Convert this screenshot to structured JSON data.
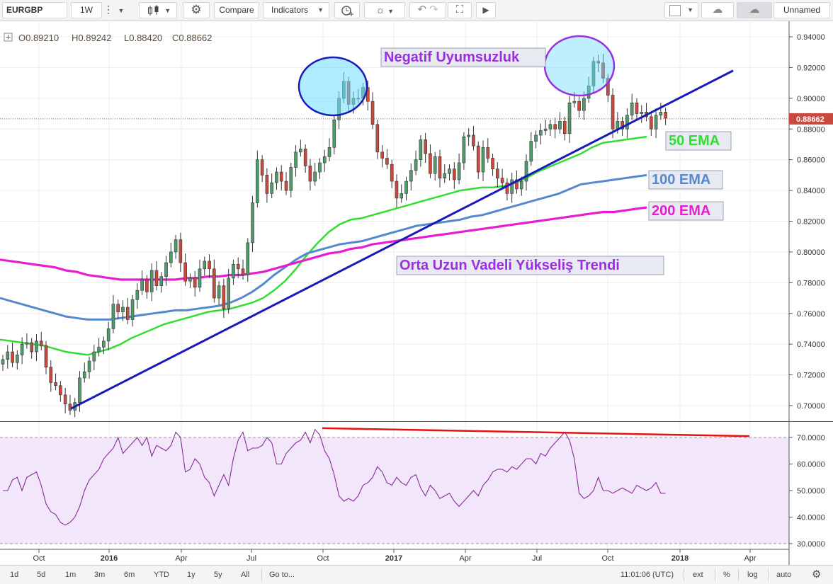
{
  "toolbar": {
    "symbol": "EURGBP",
    "interval": "1W",
    "compare_label": "Compare",
    "indicators_label": "Indicators",
    "layout_name": "Unnamed"
  },
  "legend": {
    "open": "O0.89210",
    "high": "H0.89242",
    "low": "L0.88420",
    "close": "C0.88662"
  },
  "bottom": {
    "ranges": [
      "1d",
      "5d",
      "1m",
      "3m",
      "6m",
      "YTD",
      "1y",
      "5y",
      "All"
    ],
    "goto_label": "Go to...",
    "time": "11:01:06 (UTC)",
    "ext_label": "ext",
    "percent_label": "%",
    "log_label": "log",
    "auto_label": "auto"
  },
  "colors": {
    "up": "#4f9b6c",
    "down": "#c84a3f",
    "ema50": "#33dd33",
    "ema100": "#5588cc",
    "ema200": "#e81cd0",
    "trend": "#1a1ab8",
    "rsi": "#8a2a9a",
    "rsi_band": "#f2e6fb",
    "divergence": "#e81010"
  },
  "chart_data": [
    {
      "type": "candlestick",
      "symbol": "EURGBP",
      "interval": "1W",
      "ylim": [
        0.69,
        0.945
      ],
      "y_ticks": [
        "0.70000",
        "0.72000",
        "0.74000",
        "0.76000",
        "0.78000",
        "0.80000",
        "0.82000",
        "0.84000",
        "0.86000",
        "0.88000",
        "0.90000",
        "0.92000",
        "0.94000"
      ],
      "x_ticks": [
        "Oct",
        "2016",
        "Apr",
        "Jul",
        "Oct",
        "2017",
        "Apr",
        "Jul",
        "Oct",
        "2018",
        "Apr"
      ],
      "last_price": "0.88662",
      "closes": [
        0.73,
        0.735,
        0.728,
        0.733,
        0.74,
        0.741,
        0.735,
        0.742,
        0.739,
        0.725,
        0.715,
        0.713,
        0.707,
        0.701,
        0.697,
        0.702,
        0.718,
        0.722,
        0.729,
        0.735,
        0.738,
        0.742,
        0.75,
        0.766,
        0.761,
        0.764,
        0.756,
        0.769,
        0.775,
        0.782,
        0.774,
        0.788,
        0.778,
        0.784,
        0.793,
        0.8,
        0.808,
        0.793,
        0.781,
        0.783,
        0.777,
        0.789,
        0.794,
        0.789,
        0.77,
        0.778,
        0.763,
        0.783,
        0.792,
        0.789,
        0.785,
        0.806,
        0.832,
        0.86,
        0.85,
        0.838,
        0.845,
        0.852,
        0.846,
        0.84,
        0.855,
        0.865,
        0.867,
        0.856,
        0.846,
        0.852,
        0.858,
        0.862,
        0.868,
        0.886,
        0.9,
        0.911,
        0.896,
        0.9,
        0.9,
        0.907,
        0.898,
        0.883,
        0.865,
        0.861,
        0.857,
        0.846,
        0.835,
        0.838,
        0.846,
        0.853,
        0.86,
        0.873,
        0.864,
        0.851,
        0.862,
        0.848,
        0.851,
        0.854,
        0.847,
        0.858,
        0.875,
        0.876,
        0.869,
        0.852,
        0.868,
        0.861,
        0.854,
        0.848,
        0.845,
        0.838,
        0.847,
        0.841,
        0.846,
        0.859,
        0.872,
        0.876,
        0.879,
        0.88,
        0.883,
        0.88,
        0.885,
        0.877,
        0.897,
        0.898,
        0.892,
        0.9,
        0.908,
        0.924,
        0.923,
        0.913,
        0.902,
        0.88,
        0.885,
        0.88,
        0.889,
        0.897,
        0.89,
        0.891,
        0.888,
        0.88,
        0.889,
        0.891,
        0.887
      ],
      "series": [
        {
          "name": "50 EMA",
          "values": [
            0.743,
            0.742,
            0.741,
            0.74,
            0.739,
            0.737,
            0.735,
            0.734,
            0.733,
            0.735,
            0.737,
            0.74,
            0.744,
            0.747,
            0.75,
            0.753,
            0.755,
            0.757,
            0.759,
            0.761,
            0.762,
            0.763,
            0.765,
            0.767,
            0.77,
            0.775,
            0.781,
            0.789,
            0.798,
            0.806,
            0.813,
            0.818,
            0.821,
            0.822,
            0.824,
            0.826,
            0.828,
            0.83,
            0.832,
            0.834,
            0.836,
            0.838,
            0.84,
            0.841,
            0.842,
            0.842,
            0.843,
            0.845,
            0.848,
            0.852,
            0.855,
            0.858,
            0.861,
            0.864,
            0.868,
            0.871,
            0.872,
            0.873,
            0.874,
            0.875
          ]
        },
        {
          "name": "100 EMA",
          "values": [
            0.77,
            0.768,
            0.766,
            0.764,
            0.762,
            0.76,
            0.758,
            0.757,
            0.756,
            0.756,
            0.756,
            0.757,
            0.758,
            0.759,
            0.76,
            0.761,
            0.762,
            0.762,
            0.763,
            0.764,
            0.765,
            0.767,
            0.77,
            0.774,
            0.779,
            0.785,
            0.79,
            0.795,
            0.799,
            0.801,
            0.803,
            0.805,
            0.806,
            0.807,
            0.809,
            0.811,
            0.813,
            0.815,
            0.817,
            0.818,
            0.819,
            0.82,
            0.821,
            0.823,
            0.824,
            0.826,
            0.828,
            0.83,
            0.832,
            0.834,
            0.836,
            0.838,
            0.841,
            0.844,
            0.845,
            0.846,
            0.847,
            0.848,
            0.849,
            0.85
          ]
        },
        {
          "name": "200 EMA",
          "values": [
            0.795,
            0.794,
            0.793,
            0.792,
            0.791,
            0.79,
            0.788,
            0.787,
            0.785,
            0.784,
            0.783,
            0.782,
            0.782,
            0.782,
            0.782,
            0.782,
            0.782,
            0.783,
            0.783,
            0.784,
            0.784,
            0.785,
            0.785,
            0.786,
            0.787,
            0.789,
            0.791,
            0.793,
            0.795,
            0.797,
            0.799,
            0.8,
            0.802,
            0.803,
            0.805,
            0.806,
            0.807,
            0.808,
            0.809,
            0.81,
            0.811,
            0.812,
            0.813,
            0.814,
            0.815,
            0.816,
            0.817,
            0.818,
            0.819,
            0.82,
            0.821,
            0.822,
            0.823,
            0.824,
            0.825,
            0.826,
            0.826,
            0.827,
            0.828,
            0.829
          ]
        }
      ],
      "trendline": {
        "from": [
          0.698
        ],
        "to": [
          0.918
        ]
      },
      "annotations": [
        "Negatif Uyumsuzluk",
        "50 EMA",
        "100 EMA",
        "200 EMA",
        "Orta Uzun Vadeli Yükseliş Trendi"
      ]
    },
    {
      "type": "line",
      "name": "RSI",
      "ylim": [
        27,
        74
      ],
      "y_ticks": [
        "30.0000",
        "40.0000",
        "50.0000",
        "60.0000",
        "70.0000"
      ],
      "band": [
        30,
        70
      ],
      "values": [
        50,
        50,
        54,
        55,
        50,
        55,
        56,
        57,
        52,
        45,
        42,
        41,
        38,
        37,
        38,
        40,
        44,
        50,
        54,
        56,
        58,
        62,
        64,
        66,
        70,
        64,
        66,
        68,
        70,
        67,
        70,
        63,
        67,
        66,
        65,
        67,
        72,
        70,
        57,
        58,
        62,
        60,
        55,
        53,
        48,
        52,
        56,
        52,
        62,
        69,
        72,
        65,
        66,
        66,
        67,
        70,
        68,
        60,
        60,
        64,
        66,
        68,
        69,
        72,
        68,
        73,
        71,
        65,
        62,
        56,
        48,
        46,
        47,
        46,
        48,
        52,
        53,
        55,
        59,
        57,
        53,
        52,
        55,
        53,
        52,
        55,
        56,
        51,
        48,
        52,
        50,
        47,
        48,
        49,
        46,
        44,
        46,
        48,
        50,
        48,
        52,
        54,
        57,
        58,
        58,
        57,
        59,
        58,
        60,
        62,
        62,
        60,
        64,
        63,
        66,
        68,
        70,
        72,
        69,
        62,
        49,
        47,
        48,
        50,
        55,
        50,
        50,
        49,
        50,
        51,
        50,
        49,
        52,
        51,
        50,
        51,
        53,
        49,
        49
      ],
      "divergence_line": {
        "from": 73.5,
        "to": 70.5
      }
    }
  ]
}
